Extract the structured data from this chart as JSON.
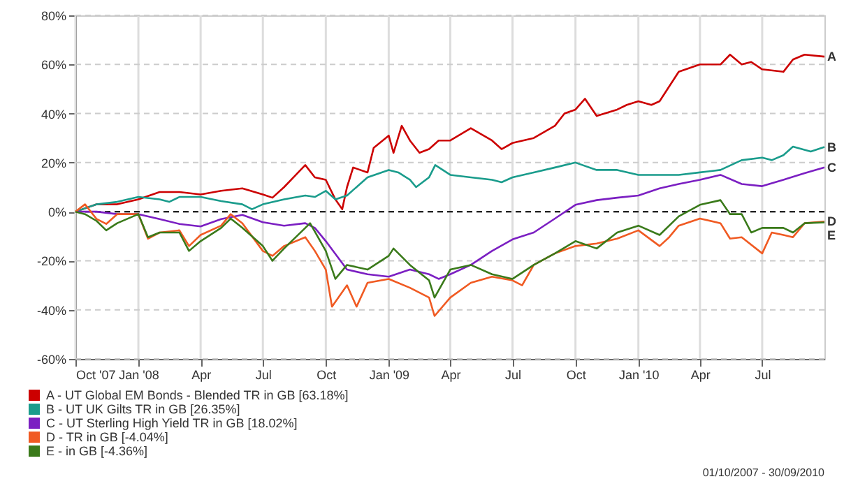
{
  "chart_data": {
    "type": "line",
    "xlim": [
      "2007-10-01",
      "2010-09-30"
    ],
    "xticks": [
      {
        "value": "2007-10-01",
        "label": "Oct '07"
      },
      {
        "value": "2008-01-01",
        "label": "Jan '08"
      },
      {
        "value": "2008-04-01",
        "label": "Apr"
      },
      {
        "value": "2008-07-01",
        "label": "Jul"
      },
      {
        "value": "2008-10-01",
        "label": "Oct"
      },
      {
        "value": "2009-01-01",
        "label": "Jan '09"
      },
      {
        "value": "2009-04-01",
        "label": "Apr"
      },
      {
        "value": "2009-07-01",
        "label": "Jul"
      },
      {
        "value": "2009-10-01",
        "label": "Oct"
      },
      {
        "value": "2010-01-01",
        "label": "Jan '10"
      },
      {
        "value": "2010-04-01",
        "label": "Apr"
      },
      {
        "value": "2010-07-01",
        "label": "Jul"
      }
    ],
    "ylim": [
      -60,
      80
    ],
    "yticks": [
      {
        "value": -60,
        "label": "-60%"
      },
      {
        "value": -40,
        "label": "-40%"
      },
      {
        "value": -20,
        "label": "-20%"
      },
      {
        "value": 0,
        "label": "0%"
      },
      {
        "value": 20,
        "label": "20%"
      },
      {
        "value": 40,
        "label": "40%"
      },
      {
        "value": 60,
        "label": "60%"
      },
      {
        "value": 80,
        "label": "80%"
      }
    ],
    "grid": true,
    "legend": "bottom left",
    "ref_lines": [
      {
        "axis": "y",
        "value": 0,
        "color": "#000000",
        "line_style": "dashed"
      }
    ],
    "annotations": [
      {
        "text": "A",
        "x": "2010-09-30",
        "y": 63.18
      },
      {
        "text": "B",
        "x": "2010-09-30",
        "y": 26.35
      },
      {
        "text": "C",
        "x": "2010-09-30",
        "y": 18.02
      },
      {
        "text": "D",
        "x": "2010-09-30",
        "y": -4.04
      },
      {
        "text": "E",
        "x": "2010-09-30",
        "y": -4.36
      },
      "01/10/2007 - 30/09/2010"
    ],
    "series": [
      {
        "name": "A - UT Global EM Bonds - Blended TR in GB [63.18%]",
        "color": "#cc0000",
        "x": [
          "2007-10-01",
          "2007-11-01",
          "2007-12-01",
          "2008-01-01",
          "2008-02-01",
          "2008-03-01",
          "2008-04-01",
          "2008-05-01",
          "2008-06-01",
          "2008-07-01",
          "2008-07-15",
          "2008-08-01",
          "2008-09-01",
          "2008-09-15",
          "2008-10-01",
          "2008-10-15",
          "2008-10-25",
          "2008-11-01",
          "2008-11-10",
          "2008-12-01",
          "2008-12-10",
          "2009-01-01",
          "2009-01-08",
          "2009-01-20",
          "2009-02-01",
          "2009-02-15",
          "2009-03-01",
          "2009-03-15",
          "2009-04-01",
          "2009-05-01",
          "2009-06-01",
          "2009-06-15",
          "2009-07-01",
          "2009-08-01",
          "2009-09-01",
          "2009-09-15",
          "2009-10-01",
          "2009-10-15",
          "2009-11-01",
          "2009-12-01",
          "2009-12-15",
          "2010-01-01",
          "2010-01-20",
          "2010-02-01",
          "2010-03-01",
          "2010-04-01",
          "2010-05-01",
          "2010-05-15",
          "2010-06-01",
          "2010-06-15",
          "2010-07-01",
          "2010-08-01",
          "2010-08-15",
          "2010-09-01",
          "2010-09-30"
        ],
        "values": [
          0,
          3,
          3,
          5,
          8,
          8,
          7,
          8.5,
          9.5,
          7,
          5.7,
          10,
          19,
          14,
          13,
          5,
          1,
          10,
          18,
          16,
          26,
          31,
          24,
          35,
          29,
          24,
          25.5,
          29,
          29,
          34,
          29,
          25.5,
          28,
          30,
          35,
          40,
          41.6,
          46,
          39,
          41.6,
          43.5,
          45,
          43.5,
          45,
          57,
          60,
          60,
          64,
          60,
          61,
          58,
          57,
          62,
          64,
          63.18
        ]
      },
      {
        "name": "B - UT UK Gilts TR in GB [26.35%]",
        "color": "#1a9c8c",
        "x": [
          "2007-10-01",
          "2007-11-01",
          "2007-12-01",
          "2008-01-01",
          "2008-02-01",
          "2008-02-15",
          "2008-03-01",
          "2008-04-01",
          "2008-05-01",
          "2008-06-01",
          "2008-06-15",
          "2008-07-01",
          "2008-08-01",
          "2008-09-01",
          "2008-09-15",
          "2008-10-01",
          "2008-10-15",
          "2008-11-01",
          "2008-12-01",
          "2009-01-01",
          "2009-01-15",
          "2009-02-01",
          "2009-02-10",
          "2009-03-01",
          "2009-03-10",
          "2009-04-01",
          "2009-05-01",
          "2009-06-01",
          "2009-06-15",
          "2009-07-01",
          "2009-08-01",
          "2009-09-01",
          "2009-10-01",
          "2009-11-01",
          "2009-12-01",
          "2010-01-01",
          "2010-02-01",
          "2010-03-01",
          "2010-04-01",
          "2010-05-01",
          "2010-06-01",
          "2010-07-01",
          "2010-07-15",
          "2010-08-01",
          "2010-08-15",
          "2010-09-10",
          "2010-09-30"
        ],
        "values": [
          0,
          3,
          4,
          6,
          5,
          4,
          6,
          6,
          4.3,
          3,
          1,
          3,
          5,
          6.6,
          6,
          8.5,
          5,
          6.6,
          14,
          17,
          16,
          13,
          10,
          14,
          19,
          15,
          14,
          13,
          12,
          14,
          16,
          18,
          20,
          17,
          17,
          15,
          15,
          15,
          16,
          17,
          21,
          22,
          21,
          23,
          26.5,
          24.5,
          26.35
        ]
      },
      {
        "name": "C - UT Sterling High Yield TR in GB [18.02%]",
        "color": "#7b1fc2",
        "x": [
          "2007-10-01",
          "2007-11-01",
          "2007-12-01",
          "2008-01-01",
          "2008-02-01",
          "2008-03-01",
          "2008-04-01",
          "2008-05-01",
          "2008-06-01",
          "2008-07-01",
          "2008-08-01",
          "2008-09-01",
          "2008-09-15",
          "2008-10-01",
          "2008-11-01",
          "2008-12-01",
          "2009-01-01",
          "2009-02-01",
          "2009-03-01",
          "2009-03-15",
          "2009-04-01",
          "2009-05-01",
          "2009-06-01",
          "2009-07-01",
          "2009-08-01",
          "2009-09-01",
          "2009-10-01",
          "2009-11-01",
          "2009-12-01",
          "2010-01-01",
          "2010-02-01",
          "2010-03-01",
          "2010-04-01",
          "2010-05-01",
          "2010-06-01",
          "2010-07-01",
          "2010-08-01",
          "2010-09-01",
          "2010-09-30"
        ],
        "values": [
          0,
          0,
          -1,
          -1,
          -3,
          -5,
          -6,
          -3,
          -1.3,
          -4.3,
          -5.7,
          -4.7,
          -6.6,
          -12,
          -23.6,
          -25.5,
          -26.5,
          -23.6,
          -25.5,
          -27.4,
          -25.5,
          -21.7,
          -16,
          -11.3,
          -8.5,
          -2.8,
          2.8,
          4.7,
          5.7,
          6.6,
          9.5,
          11.3,
          13,
          15,
          11.3,
          10.4,
          13,
          15.7,
          18.02
        ]
      },
      {
        "name": "D - TR in GB [-4.04%]",
        "color": "#f05a22",
        "x": [
          "2007-10-01",
          "2007-10-15",
          "2007-11-01",
          "2007-11-15",
          "2007-12-01",
          "2008-01-01",
          "2008-01-15",
          "2008-02-01",
          "2008-03-01",
          "2008-03-15",
          "2008-04-01",
          "2008-05-01",
          "2008-05-15",
          "2008-06-01",
          "2008-07-01",
          "2008-07-15",
          "2008-08-01",
          "2008-09-01",
          "2008-09-15",
          "2008-10-01",
          "2008-10-10",
          "2008-11-01",
          "2008-11-15",
          "2008-12-01",
          "2009-01-01",
          "2009-02-01",
          "2009-03-01",
          "2009-03-09",
          "2009-04-01",
          "2009-05-01",
          "2009-06-01",
          "2009-07-01",
          "2009-07-15",
          "2009-08-01",
          "2009-09-01",
          "2009-10-01",
          "2009-11-01",
          "2009-12-01",
          "2010-01-01",
          "2010-02-01",
          "2010-02-15",
          "2010-03-01",
          "2010-04-01",
          "2010-05-01",
          "2010-05-15",
          "2010-06-01",
          "2010-07-01",
          "2010-07-15",
          "2010-08-01",
          "2010-08-15",
          "2010-09-01",
          "2010-09-30"
        ],
        "values": [
          0,
          3,
          -3,
          -5,
          -1,
          -1,
          -11,
          -8.5,
          -7.6,
          -14,
          -9.5,
          -5.7,
          -1,
          -4.7,
          -16,
          -18,
          -14,
          -10.4,
          -16,
          -23.6,
          -38.7,
          -30,
          -38.7,
          -29,
          -27.4,
          -31,
          -35,
          -42.5,
          -35,
          -29,
          -26.5,
          -28,
          -30,
          -21.7,
          -17,
          -14,
          -13,
          -11,
          -7.6,
          -14,
          -10.4,
          -5.7,
          -2.8,
          -4.7,
          -11,
          -10.4,
          -17,
          -8.5,
          -9.5,
          -10.4,
          -4.7,
          -4.04
        ]
      },
      {
        "name": "E - in GB [-4.36%]",
        "color": "#3a7a1a",
        "x": [
          "2007-10-01",
          "2007-10-15",
          "2007-11-01",
          "2007-11-15",
          "2007-12-01",
          "2008-01-01",
          "2008-01-15",
          "2008-02-01",
          "2008-03-01",
          "2008-03-15",
          "2008-04-01",
          "2008-05-01",
          "2008-05-15",
          "2008-06-01",
          "2008-07-01",
          "2008-07-15",
          "2008-08-01",
          "2008-09-01",
          "2008-09-08",
          "2008-10-01",
          "2008-10-15",
          "2008-11-01",
          "2008-12-01",
          "2009-01-01",
          "2009-01-08",
          "2009-02-01",
          "2009-03-01",
          "2009-03-09",
          "2009-04-01",
          "2009-05-01",
          "2009-06-01",
          "2009-07-01",
          "2009-08-01",
          "2009-09-01",
          "2009-10-01",
          "2009-11-01",
          "2009-12-01",
          "2010-01-01",
          "2010-02-01",
          "2010-03-01",
          "2010-04-01",
          "2010-05-01",
          "2010-05-15",
          "2010-06-01",
          "2010-06-15",
          "2010-07-01",
          "2010-08-01",
          "2010-08-15",
          "2010-09-01",
          "2010-09-30"
        ],
        "values": [
          0,
          -1,
          -3.8,
          -7.6,
          -4.7,
          -1,
          -10.4,
          -8.5,
          -8.5,
          -16,
          -12,
          -6.6,
          -2.8,
          -6.6,
          -14,
          -20,
          -15,
          -6.6,
          -4.7,
          -16,
          -27.4,
          -21.7,
          -23.6,
          -18,
          -15,
          -21.7,
          -28,
          -35,
          -23.6,
          -21.7,
          -25.5,
          -27.4,
          -21.7,
          -17,
          -12,
          -15,
          -8.5,
          -5.7,
          -9.5,
          -1.9,
          2.8,
          4.7,
          -1,
          -1,
          -8.5,
          -6.6,
          -6.6,
          -8.5,
          -4.7,
          -4.36
        ]
      }
    ]
  }
}
